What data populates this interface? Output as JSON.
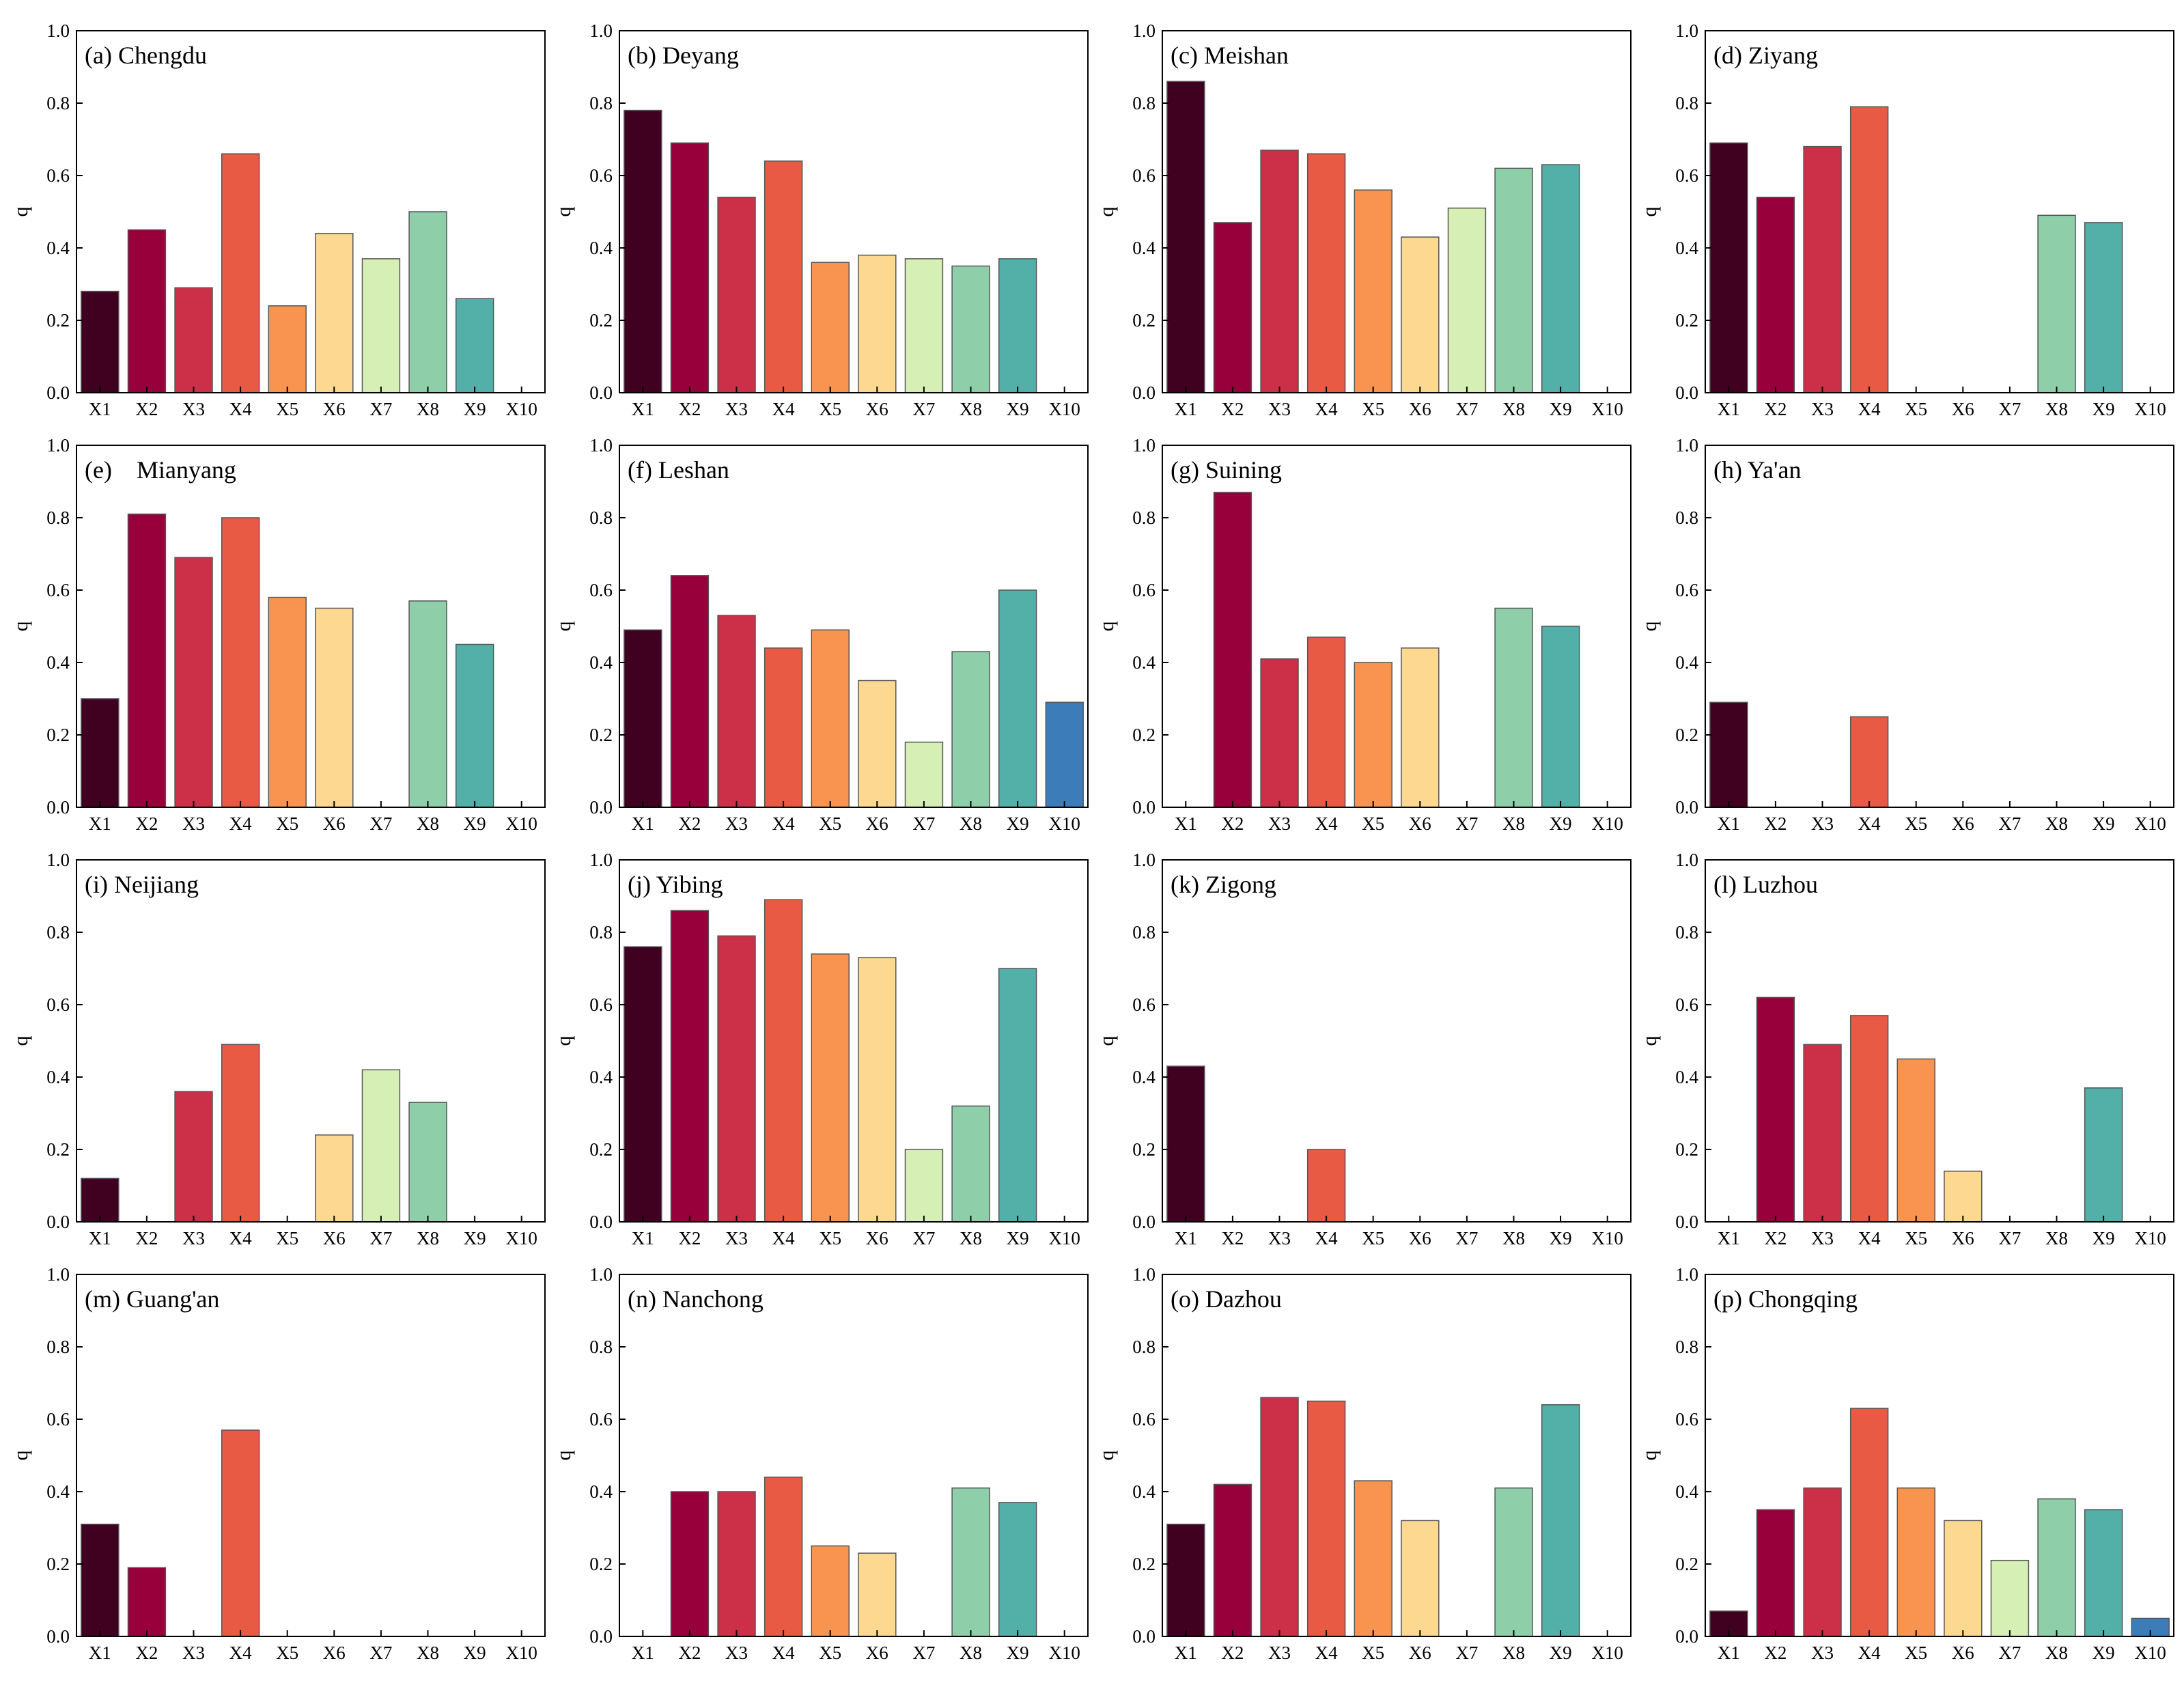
{
  "chart_data": {
    "type": "bar",
    "grid": false,
    "ylabel": "q",
    "ylim": [
      0,
      1.0
    ],
    "yticks": [
      "0.0",
      "0.2",
      "0.4",
      "0.6",
      "0.8",
      "1.0"
    ],
    "categories": [
      "X1",
      "X2",
      "X3",
      "X4",
      "X5",
      "X6",
      "X7",
      "X8",
      "X9",
      "X10"
    ],
    "colors": [
      "#400020",
      "#98003c",
      "#cc3048",
      "#e85a44",
      "#f89450",
      "#fdd890",
      "#d6efb4",
      "#8ecfaa",
      "#52b0a8",
      "#3c7cb8"
    ],
    "panels": [
      {
        "title": "(a) Chengdu",
        "values": [
          0.28,
          0.45,
          0.29,
          0.66,
          0.24,
          0.44,
          0.37,
          0.5,
          0.26,
          null
        ]
      },
      {
        "title": "(b) Deyang",
        "values": [
          0.78,
          0.69,
          0.54,
          0.64,
          0.36,
          0.38,
          0.37,
          0.35,
          0.37,
          null
        ]
      },
      {
        "title": "(c) Meishan",
        "values": [
          0.86,
          0.47,
          0.67,
          0.66,
          0.56,
          0.43,
          0.51,
          0.62,
          0.63,
          null
        ]
      },
      {
        "title": "(d) Ziyang",
        "values": [
          0.69,
          0.54,
          0.68,
          0.79,
          null,
          null,
          null,
          0.49,
          0.47,
          null
        ]
      },
      {
        "title": "(e)    Mianyang",
        "values": [
          0.3,
          0.81,
          0.69,
          0.8,
          0.58,
          0.55,
          null,
          0.57,
          0.45,
          null
        ]
      },
      {
        "title": "(f) Leshan",
        "values": [
          0.49,
          0.64,
          0.53,
          0.44,
          0.49,
          0.35,
          0.18,
          0.43,
          0.6,
          0.29
        ]
      },
      {
        "title": "(g) Suining",
        "values": [
          null,
          0.87,
          0.41,
          0.47,
          0.4,
          0.44,
          null,
          0.55,
          0.5,
          null
        ]
      },
      {
        "title": "(h) Ya'an",
        "values": [
          0.29,
          null,
          null,
          0.25,
          null,
          null,
          null,
          null,
          null,
          null
        ]
      },
      {
        "title": "(i) Neijiang",
        "values": [
          0.12,
          null,
          0.36,
          0.49,
          null,
          0.24,
          0.42,
          0.33,
          null,
          null
        ]
      },
      {
        "title": "(j) Yibing",
        "values": [
          0.76,
          0.86,
          0.79,
          0.89,
          0.74,
          0.73,
          0.2,
          0.32,
          0.7,
          null
        ]
      },
      {
        "title": "(k) Zigong",
        "values": [
          0.43,
          null,
          null,
          0.2,
          null,
          null,
          null,
          null,
          null,
          null
        ]
      },
      {
        "title": "(l) Luzhou",
        "values": [
          null,
          0.62,
          0.49,
          0.57,
          0.45,
          0.14,
          null,
          null,
          0.37,
          null
        ]
      },
      {
        "title": "(m) Guang'an",
        "values": [
          0.31,
          0.19,
          null,
          0.57,
          null,
          null,
          null,
          null,
          null,
          null
        ]
      },
      {
        "title": "(n) Nanchong",
        "values": [
          null,
          0.4,
          0.4,
          0.44,
          0.25,
          0.23,
          null,
          0.41,
          0.37,
          null
        ]
      },
      {
        "title": "(o) Dazhou",
        "values": [
          0.31,
          0.42,
          0.66,
          0.65,
          0.43,
          0.32,
          null,
          0.41,
          0.64,
          null
        ]
      },
      {
        "title": "(p) Chongqing",
        "values": [
          0.07,
          0.35,
          0.41,
          0.63,
          0.41,
          0.32,
          0.21,
          0.38,
          0.35,
          0.05
        ]
      }
    ]
  }
}
